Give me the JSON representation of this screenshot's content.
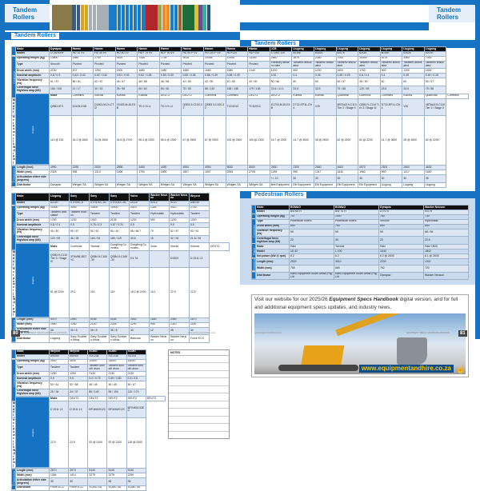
{
  "section_title": "Tandem Rollers",
  "pedestrian_title": "Pedestrian Rollers",
  "groups": {
    "compaction": "Compaction",
    "engine": "Engine",
    "dimensions": "Dimensions"
  },
  "tab_colors": [
    "#8a7a4a",
    "#8a7a4a",
    "#8a7a4a",
    "#8a7a4a",
    "#8a7a4a",
    "#3d5a7a",
    "#3d5a7a",
    "#d9a520",
    "#d9a520",
    "#a7aeb5",
    "#a7aeb5",
    "#a7aeb5",
    "#a7aeb5",
    "#a7aeb5",
    "#1a7cc7",
    "#1a7cc7",
    "#1a7cc7",
    "#1a7cc7",
    "#1a7cc7",
    "#1a7cc7",
    "#1a7cc7",
    "#1a7cc7",
    "#1a7cc7",
    "#b0282c",
    "#b0282c",
    "#b0282c",
    "#8faa3c",
    "#f08a24",
    "#f08a24",
    "#1a7cc7",
    "#1a7cc7",
    "#a0622d",
    "#1f6b3a",
    "#1f6b3a",
    "#1f6b3a",
    "#e8c21c",
    "#6b4f8a",
    "#2bb5a0",
    "#24527a"
  ],
  "tables": [
    {
      "makes": [
        "Dynapac",
        "Hamm",
        "Hamm",
        "Hamm",
        "Hamm",
        "Hamm",
        "Hamm",
        "Hamm",
        "Hamm",
        "Hamm",
        "JCB",
        "Liugong",
        "Liugong",
        "Liugong",
        "Liugong",
        "Liugong",
        "Liugong",
        "Liugong"
      ],
      "make_label": "Make",
      "rows": [
        {
          "label": "Model",
          "values": [
            "CC6200HF",
            "HD 10 VV",
            "HD 35 VV",
            "HD 50 VV",
            "HD+ 70 VV",
            "HD+ 90 VV",
            "HD 90 P VV",
            "HD 110 P VV",
            "HD+120",
            "HD+140",
            "CT260-120",
            "6015E",
            "6302E",
            "6207E",
            "6211E",
            "6015E",
            "6302E",
            "6207E"
          ]
        },
        {
          "label": "Operating weight (kg)",
          "group": "compaction",
          "span": 7,
          "values": [
            "13600",
            "1580",
            "2750",
            "4420",
            "7445",
            "7735",
            "9515",
            "10455",
            "12945",
            "13340",
            "2560",
            "1675",
            "2360",
            "7000",
            "10300",
            "1675",
            "3360",
            "7000"
          ]
        },
        {
          "label": "Type",
          "tall": 1,
          "values": [
            "Smooth",
            "Pivoted",
            "Pivoted",
            "Pivoted",
            "Pivoted",
            "Pivoted",
            "Pivoted",
            "Pivoted",
            "Pivoted",
            "Pivoted",
            "Vibratory tandem roller",
            "Tandem/ articulated",
            "Tandem/ articulated",
            "Tandem/ articulated",
            "Tandem/ articulated",
            "Tandem/ articulated",
            "Tandem/ articulated",
            "Tandem/ articulated"
          ]
        },
        {
          "label": "Drum width (mm)",
          "values": [
            "2130",
            "872",
            "1250",
            "1500",
            "1680",
            "1680",
            "1680",
            "1680",
            "1680",
            "2140",
            "1200",
            "900",
            "1200",
            "1500",
            "1750",
            "900",
            "1200",
            "1500"
          ]
        },
        {
          "label": "Nominal amplitude",
          "values": [
            "0.8 / 0.3",
            "0.43 / 0.43",
            "0.52 / 0.52",
            "0.51 / 0.51",
            "0.62 / 0.35",
            "0.55 / 0.30",
            "0.65 / 0.36",
            "0.86 / 0.49",
            "0.88 / 0.49",
            "",
            "0.51",
            "0.4",
            "0.45",
            "0.45 / 0.25",
            "0.8 / 0.4",
            "0.4",
            "0.45",
            "0.45 / 0.25"
          ]
        },
        {
          "label": "Vibration frequency (Hz)",
          "values": [
            "51 / 67",
            "66 / 61",
            "52 / 67",
            "48 / 67",
            "48 / 58",
            "48 / 58",
            "42 / 50",
            "42 / 50",
            "40 / 50",
            "40 / 50",
            "50 / 66",
            "60",
            "60",
            "50 / 67",
            "45 / 50",
            "60",
            "60",
            "50 / 67"
          ]
        },
        {
          "label": "Centrifugal force High/low amp (kN)",
          "values": [
            "166 / 106",
            "11 / 17",
            "30 / 52",
            "35 / 58",
            "65 / 60",
            "65 / 60",
            "75 / 59",
            "86 / 120",
            "158 / 138",
            "179 / 138",
            "23.6 / 41.1",
            "23.5",
            "33.5",
            "79 / 68",
            "120 / 69",
            "23.5",
            "33.5",
            "79 / 68"
          ]
        },
        {
          "label": "Make",
          "group": "engine",
          "span": 3,
          "values": [
            "Cummins",
            "Kubota",
            "Kubota",
            "Kubota",
            "DEUTZ",
            "DEUTZ",
            "Cummins",
            "Cummins",
            "DEUTZ",
            "DEUTZ",
            "Kubota",
            "Kubota",
            "Quanchai",
            "Cummins",
            "Cummins",
            "Kubota",
            "Quanchai",
            "Cummins"
          ]
        },
        {
          "label": "Model",
          "tall": 1,
          "values": [
            "QSB4.5T3",
            "D1105-E4B",
            "D1803-M-DI-CTI2",
            "V2403-M-DI-E3B",
            "TD 2.9 L4",
            "TD 2.9 L4",
            "QSB3.3-C100-32",
            "QSB3.3-C100-32",
            "TCD2012",
            "TCD2012",
            "D1703-M-DI-E4B",
            "D722-EP11-CN4",
            "V20",
            "4BTAA3.9-C110 Tier 2 / Stage II",
            "QSB3.9-C110 Tier 3 / Stage III",
            "D722-EP11-CN4",
            "V20",
            "4BTAA3.9-C110 Tier 2 / Stage II"
          ]
        },
        {
          "label": "Net power (kW @ rpm)",
          "values": [
            "113 @ 152",
            "16.1 @ 2600",
            "24 @ 2600",
            "34.8 @ 2700",
            "55.4 @ 2300",
            "55.4 @ 2300",
            "67 @ 2500",
            "67 @ 2500",
            "100 @ 2300",
            "100 @ 2300",
            "18.7 @ 2200",
            "14.7 @ 3600",
            "28 @ 2600",
            "82 @ 2200",
            "81 @ 2200",
            "14.7 @ 3600",
            "28 @ 2600",
            "82 @ 2200"
          ]
        },
        {
          "label": "Length (mm)",
          "group": "dimensions",
          "span": 3,
          "values": [
            "4990",
            "2295",
            "2530",
            "2898",
            "4450",
            "4450",
            "4954",
            "4954",
            "5000",
            "5000",
            "2490",
            "2300",
            "2660",
            "4600",
            "4970",
            "2300",
            "2660",
            "4600"
          ]
        },
        {
          "label": "Width (mm)",
          "values": [
            "2316",
            "938",
            "1310",
            "1506",
            "1790",
            "1800",
            "1807",
            "1807",
            "2545",
            "2705",
            "1295",
            "990",
            "1317",
            "1640",
            "1960",
            "990",
            "1317",
            "1640"
          ]
        },
        {
          "label": "Articulation either side (degrees)",
          "values": [
            "",
            "",
            "",
            "",
            "",
            "",
            "",
            "",
            "",
            "",
            "+/- 10",
            "30",
            "30",
            "35",
            "35",
            "30",
            "30",
            "35"
          ]
        },
        {
          "label": "Distributor",
          "values": [
            "Dynapac",
            "Wirtgen SA",
            "Wirtgen SA",
            "Wirtgen SA",
            "Wirtgen SA",
            "Wirtgen SA",
            "Wirtgen SA",
            "Wirtgen SA",
            "Wirtgen SA",
            "Wirtgen SA",
            "Bell Equipment",
            "Elb Equipment",
            "Elb Equipment",
            "Elb Equipment",
            "Elb Equipment",
            "Liugong",
            "Liugong",
            "Liugong"
          ]
        }
      ]
    },
    {
      "makes": [
        "Liugong",
        "Sany",
        "Sany",
        "Sany",
        "Volvo",
        "Wacker Neuson",
        "Wacker Neuson",
        "Weycor"
      ],
      "make_label": "Make",
      "rows": [
        {
          "label": "Model",
          "values": [
            "6211E",
            "STR30C-8",
            "STR100C-8C",
            "STR140C-8C",
            "DD25",
            "RD12",
            "RD27",
            "AW240"
          ]
        },
        {
          "label": "Operating weight (kg)",
          "group": "compaction",
          "span": 7,
          "values": [
            "10300",
            "3000",
            "10500",
            "14000",
            "2515",
            "1344",
            "3410",
            "2700"
          ]
        },
        {
          "label": "Type",
          "tall": 1,
          "values": [
            "Tandem/ articulated",
            "Tandem Ride-on",
            "Tandem",
            "Tandem",
            "Tandem",
            "Hydrostatic",
            "Hydrostatic",
            "Tandem"
          ]
        },
        {
          "label": "Drum width (mm)",
          "values": [
            "1750",
            "1200",
            "1900",
            "2135",
            "1200",
            "900",
            "1200",
            "1000"
          ]
        },
        {
          "label": "Nominal amplitude",
          "values": [
            "0.8 / 0.4",
            "0.5",
            "0.75 / 0.3",
            "0.87 / 0.31",
            "0.5",
            "",
            "0.5",
            "0.5"
          ]
        },
        {
          "label": "Vibration frequency (Hz)",
          "values": [
            "45 / 50",
            "55 / 67",
            "50 / 61",
            "50 / 61",
            "55 / 66.7",
            "70",
            "52 / 67",
            "53 / 61"
          ]
        },
        {
          "label": "Centrifugal force High/low amp (kN)",
          "values": [
            "120 / 69",
            "46 / 28",
            "160 / 94",
            "185 / 119",
            "40.6",
            "15",
            "32 / 52",
            "21.5 / 26"
          ]
        },
        {
          "label": "Make",
          "group": "engine",
          "span": 3,
          "tall": 1,
          "values": [
            "Cummins",
            "Yanmar",
            "Dongfeng Cummins",
            "Dongfeng Cummins",
            "Volvo",
            "Honda",
            "Kubota",
            "DEUTZ"
          ]
        },
        {
          "label": "Model",
          "tall": 1,
          "values": [
            "QSB3.9-C110 Tier 3 / Stage III",
            "3TNV88-BDTYC",
            "QSB4.5-C160-30",
            "QSB4.5-C160-30",
            "D1.7A",
            "",
            "D1503",
            "D 2011 L3"
          ]
        },
        {
          "label": "Net power (kW @ rpm)",
          "values": [
            "81 @ 2200",
            "29.1",
            "119",
            "119",
            "18.2 @ 2200",
            "15.1",
            "22.9",
            "22.5"
          ]
        },
        {
          "label": "Length (mm)",
          "group": "dimensions",
          "span": 3,
          "values": [
            "4970",
            "2550",
            "5165",
            "5165",
            "2540",
            "1880",
            "2460",
            "2670"
          ]
        },
        {
          "label": "Width (mm)",
          "values": [
            "1960",
            "1280",
            "2100",
            "2305",
            "1290",
            "998",
            "1310",
            "1190"
          ]
        },
        {
          "label": "Articulation either side (degrees)",
          "values": [
            "35",
            "30 / 8",
            "35 / 8",
            "35 / 8",
            "30",
            "12",
            "45",
            "30"
          ]
        },
        {
          "label": "Distributor",
          "tall": 1,
          "values": [
            "Liugong",
            "Sany Southern Africa",
            "Sany Southern Africa",
            "Sany Southern Africa",
            "Babcock",
            "Wacker Neuson",
            "Wacker Neuson",
            "Force 8 CC"
          ]
        }
      ]
    },
    {
      "makes": [
        "Weycor",
        "Weycor",
        "XCMG",
        "XCMG",
        "XCMG"
      ],
      "make_label": "Make",
      "rows": [
        {
          "label": "Model",
          "values": [
            "AW260",
            "AW300",
            "XD123E",
            "XD133E",
            "XD143"
          ]
        },
        {
          "label": "Operating weight (kg)",
          "group": "compaction",
          "span": 7,
          "values": [
            "2600",
            "3000",
            "12500",
            "13000",
            "14000"
          ]
        },
        {
          "label": "Type",
          "tall": 1,
          "values": [
            "Tandem",
            "Tandem",
            "Tandem smooth drum",
            "Tandem smooth drum",
            "Tandem smooth drum"
          ]
        },
        {
          "label": "Drum width (mm)",
          "values": [
            "1250",
            "1250",
            "2130",
            "2130",
            "2130"
          ]
        },
        {
          "label": "Nominal amplitude",
          "values": [
            "0.5",
            "0.5",
            "0.4 / 0.75",
            "0.45 / 0.80",
            "0.3 / 0.8"
          ]
        },
        {
          "label": "Vibration frequency (Hz)",
          "values": [
            "53 / 61",
            "52 / 58",
            "48 / 45",
            "48 / 45",
            "50 / 67"
          ]
        },
        {
          "label": "Centrifugal force High/low amp (kN)",
          "values": [
            "25 / 34",
            "24 / 37",
            "85 / 140",
            "95 / 150",
            "110 / 170"
          ]
        },
        {
          "label": "Make",
          "group": "engine",
          "span": 3,
          "values": [
            "DEUTZ",
            "DEUTZ",
            "DEUTZ",
            "DEUTZ",
            "DEUTZ"
          ]
        },
        {
          "label": "Model",
          "values": [
            "D 2011 L3",
            "D 2011 L3",
            "BF04M2012C",
            "BF04M2012C",
            "BF04M1013EC"
          ]
        },
        {
          "label": "Net power (kW @ rpm)",
          "values": [
            "22.5",
            "22.5",
            "92 @ 2100",
            "92 @ 2100",
            "118 @ 2300"
          ]
        },
        {
          "label": "Length (mm)",
          "group": "dimensions",
          "span": 3,
          "values": [
            "2670",
            "2670",
            "5140",
            "5140",
            "5140"
          ]
        },
        {
          "label": "Width (mm)",
          "values": [
            "1364",
            "1414",
            "2279",
            "2279",
            "2290"
          ]
        },
        {
          "label": "Articulation either side (degrees)",
          "values": [
            "30",
            "30",
            "",
            "35",
            "35"
          ]
        },
        {
          "label": "Distributor",
          "values": [
            "Force 8 CC",
            "Force 8 CC",
            "XCMG SA",
            "XCMG SA",
            "XCMG SA"
          ]
        }
      ]
    },
    {
      "makes": [
        "BOMAG",
        "BOMAG",
        "Dynapac",
        "Wacker Neuson"
      ],
      "make_label": "Make",
      "rows": [
        {
          "label": "Model",
          "values": [
            "BW 65 H",
            "BW 75 H",
            "DTR75",
            "RD7H"
          ]
        },
        {
          "label": "Operating weight (kg)",
          "values": [
            "757",
            "1040",
            "760",
            "730"
          ]
        },
        {
          "label": "Type",
          "group": "compaction",
          "span": 4,
          "values": [
            "Pedestrian rollers",
            "Pedestrian rollers",
            "Smooth",
            "Hydrostatic"
          ]
        },
        {
          "label": "Drum width (mm)",
          "values": [
            "650",
            "750",
            "650",
            "650"
          ]
        },
        {
          "label": "Vibration frequency (Hz)",
          "values": [
            "55",
            "55",
            "55",
            "68 / 56"
          ]
        },
        {
          "label": "Centrifugal force high/low amp (kN)",
          "tall": 1,
          "values": [
            "22",
            "40",
            "22",
            "22.5"
          ]
        },
        {
          "label": "Make",
          "group": "engine",
          "span": 3,
          "values": [
            "Hatz",
            "Yanmar",
            "Hatz",
            "Hatz 1B40"
          ]
        },
        {
          "label": "Model",
          "values": [
            "1D 42",
            "L 100",
            "1D42",
            "1B42"
          ]
        },
        {
          "label": "Net power (kW @ rpm)",
          "values": [
            "6.2",
            "6.2",
            "6.2 @ 2600",
            "6.1 @ 2600"
          ]
        },
        {
          "label": "Length (mm)",
          "group": "dimensions",
          "span": 2,
          "tall": 1,
          "values": [
            "2520",
            "3010",
            "2200",
            "1301"
          ]
        },
        {
          "label": "Width (mm)",
          "tall": 1,
          "values": [
            "765",
            "865",
            "762",
            "720"
          ]
        },
        {
          "label": "Distributor",
          "tall": 1,
          "values": [
            "Kanu Equipment South Africa (Pty) Ltd",
            "Kanu Equipment South Africa (Pty) Ltd",
            "Dynapac",
            "Wacker Neuson"
          ]
        }
      ]
    }
  ],
  "notes_title": "NOTES",
  "ad": {
    "text_pre": "Visit our website for our 2025/26 ",
    "text_bold": "Equipment Specs Handbook",
    "text_post": " digital version, and for full and additional equipment specs updates, and industry news.",
    "url": "www.equipmentandhire.co.za"
  },
  "footer": {
    "left_page": "80",
    "right_page": "81",
    "handbook": "EQUIPMENT SPECS HANDBOOK 2025/2026",
    "website": "www.equipmentandhire.co.za"
  }
}
